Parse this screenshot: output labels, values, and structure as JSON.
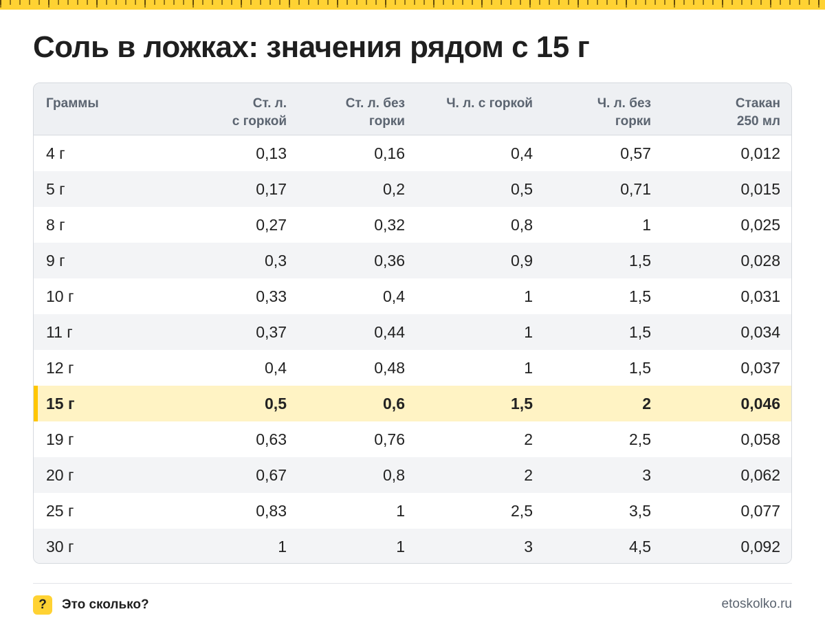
{
  "title": "Соль в ложках: значения рядом с 15 г",
  "table": {
    "headers": [
      "Граммы",
      "Ст. л.\nс горкой",
      "Ст. л. без\nгорки",
      "Ч. л. с горкой",
      "Ч. л. без\nгорки",
      "Стакан\n250 мл"
    ],
    "highlight_row": 7,
    "rows": [
      [
        "4 г",
        "0,13",
        "0,16",
        "0,4",
        "0,57",
        "0,012"
      ],
      [
        "5 г",
        "0,17",
        "0,2",
        "0,5",
        "0,71",
        "0,015"
      ],
      [
        "8 г",
        "0,27",
        "0,32",
        "0,8",
        "1",
        "0,025"
      ],
      [
        "9 г",
        "0,3",
        "0,36",
        "0,9",
        "1,5",
        "0,028"
      ],
      [
        "10 г",
        "0,33",
        "0,4",
        "1",
        "1,5",
        "0,031"
      ],
      [
        "11 г",
        "0,37",
        "0,44",
        "1",
        "1,5",
        "0,034"
      ],
      [
        "12 г",
        "0,4",
        "0,48",
        "1",
        "1,5",
        "0,037"
      ],
      [
        "15 г",
        "0,5",
        "0,6",
        "1,5",
        "2",
        "0,046"
      ],
      [
        "19 г",
        "0,63",
        "0,76",
        "2",
        "2,5",
        "0,058"
      ],
      [
        "20 г",
        "0,67",
        "0,8",
        "2",
        "3",
        "0,062"
      ],
      [
        "25 г",
        "0,83",
        "1",
        "2,5",
        "3,5",
        "0,077"
      ],
      [
        "30 г",
        "1",
        "1",
        "3",
        "4,5",
        "0,092"
      ]
    ]
  },
  "footer": {
    "badge_symbol": "?",
    "brand_name": "Это сколько?",
    "site": "etoskolko.ru"
  },
  "colors": {
    "accent": "#ffd233",
    "highlight_bg": "#fff3c4",
    "highlight_bar": "#ffc600",
    "header_bg": "#eef0f3"
  }
}
